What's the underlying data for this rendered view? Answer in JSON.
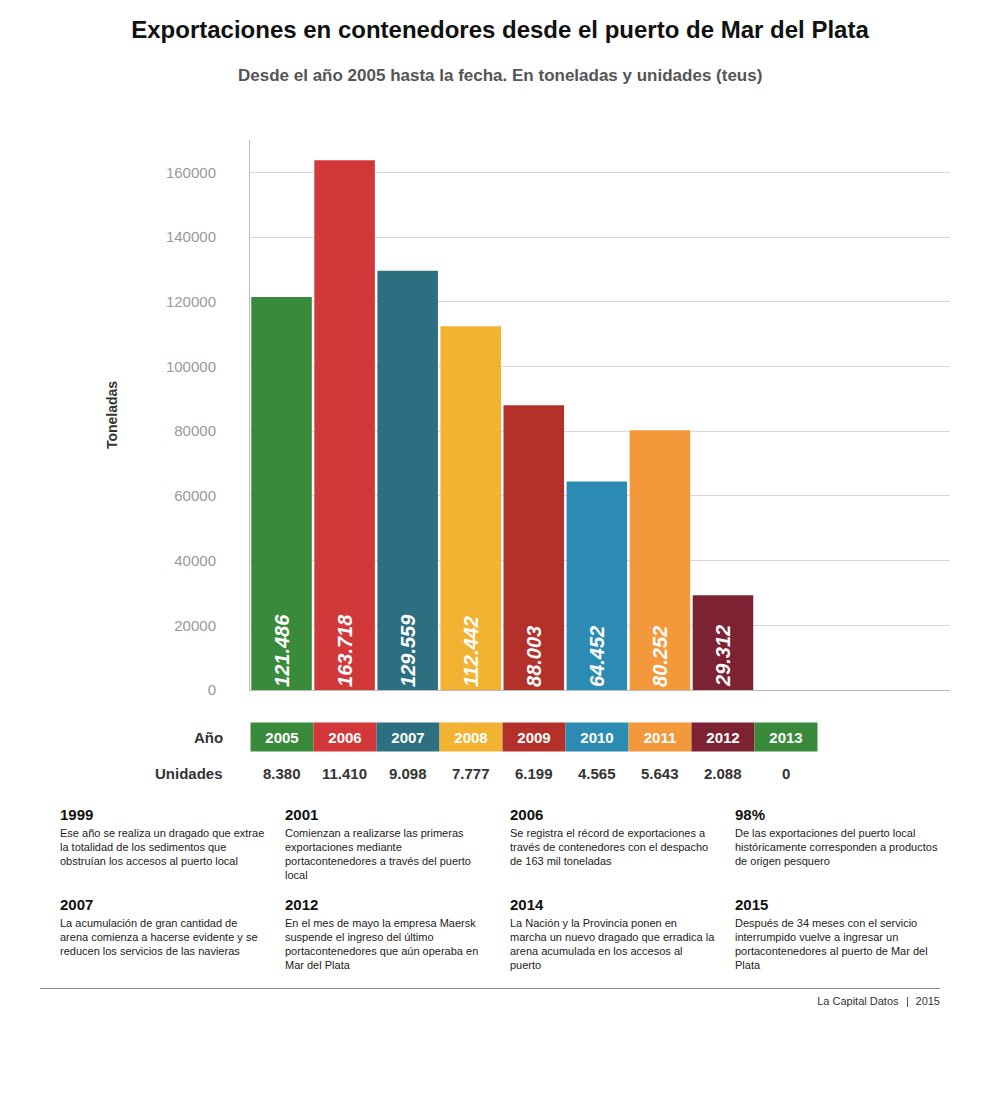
{
  "chart_data": {
    "type": "bar",
    "title": "Exportaciones en contenedores desde el puerto de Mar del Plata",
    "subtitle": "Desde el año 2005 hasta la fecha. En toneladas y unidades (teus)",
    "y_label": "Toneladas",
    "x_label": "Año",
    "categories": [
      "2005",
      "2006",
      "2007",
      "2008",
      "2009",
      "2010",
      "2011",
      "2012",
      "2013"
    ],
    "values": [
      121486,
      163718,
      129559,
      112442,
      88003,
      64452,
      80252,
      29312,
      0
    ],
    "value_labels": [
      "121.486",
      "163.718",
      "129.559",
      "112.442",
      "88.003",
      "64.452",
      "80.252",
      "29.312",
      null
    ],
    "colors": [
      "#3a8a3c",
      "#d2383a",
      "#2b6f80",
      "#f2b232",
      "#b3302b",
      "#2c8bb3",
      "#f3983b",
      "#7d2233",
      "#3a8a3c"
    ],
    "data_labels": true,
    "ylim": [
      0,
      170000
    ],
    "yticks": [
      0,
      20000,
      40000,
      60000,
      80000,
      100000,
      120000,
      140000,
      160000
    ],
    "grid": true,
    "units_label": "Unidades",
    "units": [
      "8.380",
      "11.410",
      "9.098",
      "7.777",
      "6.199",
      "4.565",
      "5.643",
      "2.088",
      "0"
    ]
  },
  "notes": [
    {
      "heading": "1999",
      "text": "Ese año se realiza un dragado que extrae la totalidad de los sedimentos que obstruían los accesos al puerto local"
    },
    {
      "heading": "2001",
      "text": "Comienzan a realizarse las primeras exportaciones mediante portacontenedores a través del puerto local"
    },
    {
      "heading": "2006",
      "text": "Se registra el récord de exportaciones a través de contenedores con el despacho de 163 mil toneladas"
    },
    {
      "heading": "98%",
      "text": "De las exportaciones del puerto local históricamente corresponden a productos de origen pesquero"
    },
    {
      "heading": "2007",
      "text": "La acumulación de gran cantidad de arena comienza a hacerse evidente y se reducen los servicios de las navieras"
    },
    {
      "heading": "2012",
      "text": "En el mes de mayo la empresa Maersk suspende el ingreso del último portacontenedores que aún operaba en Mar del Plata"
    },
    {
      "heading": "2014",
      "text": "La Nación y la Provincia ponen en marcha un nuevo dragado que erradica la arena acumulada en los accesos al puerto"
    },
    {
      "heading": "2015",
      "text": "Después de 34 meses con el servicio interrumpido vuelve a ingresar un portacontenedores al puerto de Mar del Plata"
    }
  ],
  "source": "La Capital Datos",
  "source_year": "2015"
}
